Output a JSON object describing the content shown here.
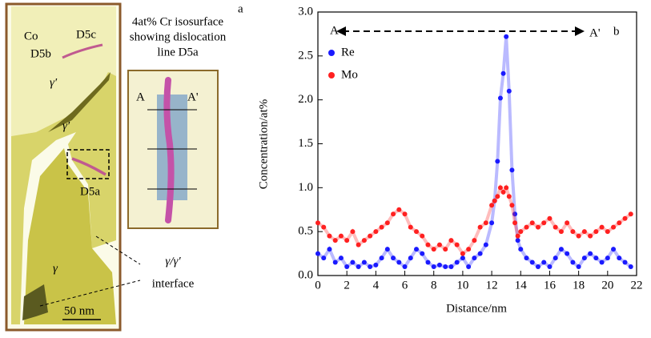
{
  "panel_a": {
    "label": "a",
    "caption": [
      "4at% Cr isosurface",
      "showing dislocation",
      "line D5a"
    ],
    "labels": [
      "Co",
      "D5b",
      "D5c",
      "γ′",
      "γ′",
      "D5a",
      "γ"
    ],
    "interface": [
      "γ/γ′",
      "interface"
    ],
    "scale": "50 nm",
    "inset": [
      "A",
      "A'"
    ]
  },
  "chart_data": {
    "type": "scatter",
    "annotations": [
      "A",
      "A'",
      "b"
    ],
    "xlabel": "Distance/nm",
    "ylabel": "Concentration/at%",
    "x": [
      0,
      0.4,
      0.8,
      1.2,
      1.6,
      2.0,
      2.4,
      2.8,
      3.2,
      3.6,
      4.0,
      4.4,
      4.8,
      5.2,
      5.6,
      6.0,
      6.4,
      6.8,
      7.2,
      7.6,
      8.0,
      8.4,
      8.8,
      9.2,
      9.6,
      10.0,
      10.4,
      10.8,
      11.2,
      11.6,
      12.0,
      12.2,
      12.4,
      12.6,
      12.8,
      13.0,
      13.2,
      13.4,
      13.6,
      13.8,
      14.0,
      14.4,
      14.8,
      15.2,
      15.6,
      16.0,
      16.4,
      16.8,
      17.2,
      17.6,
      18.0,
      18.4,
      18.8,
      19.2,
      19.6,
      20.0,
      20.4,
      20.8,
      21.2,
      21.6
    ],
    "series": [
      {
        "name": "Re",
        "color": "#1a1aff",
        "values": [
          0.25,
          0.2,
          0.3,
          0.15,
          0.2,
          0.1,
          0.15,
          0.1,
          0.15,
          0.1,
          0.12,
          0.2,
          0.3,
          0.2,
          0.15,
          0.1,
          0.2,
          0.3,
          0.25,
          0.15,
          0.1,
          0.12,
          0.1,
          0.1,
          0.15,
          0.2,
          0.1,
          0.2,
          0.25,
          0.35,
          0.6,
          0.85,
          1.3,
          2.02,
          2.3,
          2.72,
          2.1,
          1.2,
          0.7,
          0.4,
          0.3,
          0.2,
          0.15,
          0.1,
          0.15,
          0.1,
          0.2,
          0.3,
          0.25,
          0.15,
          0.1,
          0.2,
          0.25,
          0.2,
          0.15,
          0.2,
          0.3,
          0.2,
          0.15,
          0.1
        ]
      },
      {
        "name": "Mo",
        "color": "#ff2020",
        "values": [
          0.6,
          0.55,
          0.45,
          0.4,
          0.45,
          0.4,
          0.5,
          0.35,
          0.4,
          0.45,
          0.5,
          0.55,
          0.6,
          0.7,
          0.75,
          0.7,
          0.55,
          0.5,
          0.45,
          0.35,
          0.3,
          0.35,
          0.3,
          0.4,
          0.35,
          0.25,
          0.3,
          0.4,
          0.55,
          0.6,
          0.8,
          0.85,
          0.9,
          1.0,
          0.95,
          1.0,
          0.9,
          0.8,
          0.6,
          0.45,
          0.5,
          0.55,
          0.6,
          0.55,
          0.6,
          0.65,
          0.55,
          0.5,
          0.6,
          0.5,
          0.45,
          0.5,
          0.45,
          0.5,
          0.55,
          0.5,
          0.55,
          0.6,
          0.65,
          0.7
        ]
      }
    ],
    "xlim": [
      0,
      22
    ],
    "xticks": [
      0,
      2,
      4,
      6,
      8,
      10,
      12,
      14,
      16,
      18,
      20,
      22
    ],
    "ylim": [
      0,
      3.0
    ],
    "yticks": [
      {
        "value": 0,
        "label": "0.0"
      },
      0.5,
      {
        "value": 1,
        "label": "1.0"
      },
      1.5,
      {
        "value": 2,
        "label": "2.0"
      },
      2.5,
      {
        "value": 3,
        "label": "3.0"
      }
    ]
  }
}
